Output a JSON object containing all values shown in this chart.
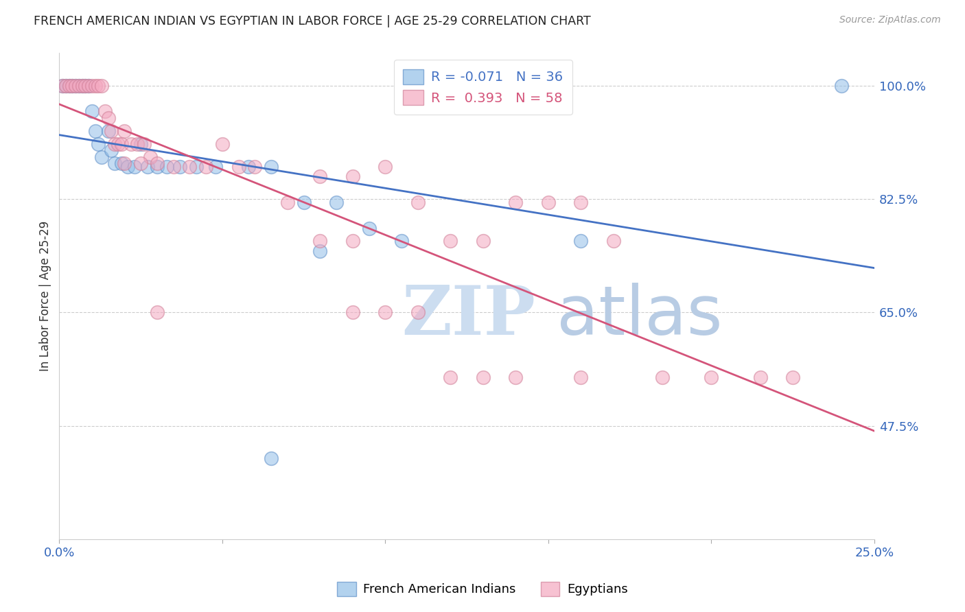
{
  "title": "FRENCH AMERICAN INDIAN VS EGYPTIAN IN LABOR FORCE | AGE 25-29 CORRELATION CHART",
  "source": "Source: ZipAtlas.com",
  "ylabel": "In Labor Force | Age 25-29",
  "x_min": 0.0,
  "x_max": 0.25,
  "y_min": 0.3,
  "y_max": 1.05,
  "y_tick_vals_right": [
    1.0,
    0.825,
    0.65,
    0.475
  ],
  "y_tick_labels_right": [
    "100.0%",
    "82.5%",
    "65.0%",
    "47.5%"
  ],
  "legend_r_blue": "-0.071",
  "legend_n_blue": "36",
  "legend_r_pink": "0.393",
  "legend_n_pink": "58",
  "legend_label_blue": "French American Indians",
  "legend_label_pink": "Egyptians",
  "blue_color": "#92bfe8",
  "pink_color": "#f4a8c0",
  "blue_line_color": "#4472c4",
  "pink_line_color": "#d4547a",
  "watermark_zip": "ZIP",
  "watermark_atlas": "atlas",
  "blue_points_x": [
    0.001,
    0.002,
    0.003,
    0.004,
    0.005,
    0.006,
    0.007,
    0.008,
    0.009,
    0.01,
    0.011,
    0.012,
    0.013,
    0.015,
    0.016,
    0.017,
    0.019,
    0.021,
    0.023,
    0.025,
    0.027,
    0.03,
    0.033,
    0.037,
    0.042,
    0.048,
    0.058,
    0.065,
    0.075,
    0.085,
    0.095,
    0.105,
    0.16,
    0.24,
    0.065,
    0.08
  ],
  "blue_points_y": [
    1.0,
    1.0,
    1.0,
    1.0,
    1.0,
    1.0,
    1.0,
    1.0,
    1.0,
    0.96,
    0.93,
    0.91,
    0.89,
    0.93,
    0.9,
    0.88,
    0.88,
    0.875,
    0.875,
    0.91,
    0.875,
    0.875,
    0.875,
    0.875,
    0.875,
    0.875,
    0.875,
    0.875,
    0.82,
    0.82,
    0.78,
    0.76,
    0.76,
    1.0,
    0.425,
    0.745
  ],
  "pink_points_x": [
    0.001,
    0.002,
    0.003,
    0.004,
    0.005,
    0.006,
    0.007,
    0.008,
    0.009,
    0.01,
    0.011,
    0.012,
    0.013,
    0.014,
    0.015,
    0.016,
    0.017,
    0.018,
    0.019,
    0.02,
    0.022,
    0.024,
    0.026,
    0.028,
    0.03,
    0.035,
    0.04,
    0.045,
    0.05,
    0.055,
    0.06,
    0.07,
    0.08,
    0.09,
    0.1,
    0.11,
    0.12,
    0.13,
    0.14,
    0.15,
    0.16,
    0.17,
    0.08,
    0.09,
    0.02,
    0.025,
    0.03,
    0.09,
    0.1,
    0.11,
    0.12,
    0.13,
    0.14,
    0.16,
    0.185,
    0.2,
    0.215,
    0.225
  ],
  "pink_points_y": [
    1.0,
    1.0,
    1.0,
    1.0,
    1.0,
    1.0,
    1.0,
    1.0,
    1.0,
    1.0,
    1.0,
    1.0,
    1.0,
    0.96,
    0.95,
    0.93,
    0.91,
    0.91,
    0.91,
    0.93,
    0.91,
    0.91,
    0.91,
    0.89,
    0.88,
    0.875,
    0.875,
    0.875,
    0.91,
    0.875,
    0.875,
    0.82,
    0.76,
    0.76,
    0.875,
    0.82,
    0.76,
    0.76,
    0.82,
    0.82,
    0.82,
    0.76,
    0.86,
    0.86,
    0.88,
    0.88,
    0.65,
    0.65,
    0.65,
    0.65,
    0.55,
    0.55,
    0.55,
    0.55,
    0.55,
    0.55,
    0.55,
    0.55
  ]
}
